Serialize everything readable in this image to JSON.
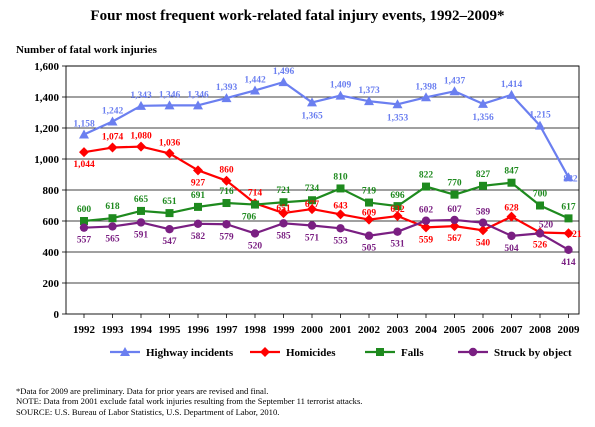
{
  "chart_data": {
    "type": "line",
    "title": "Four most frequent work-related fatal injury events, 1992–2009*",
    "ylabel": "Number of fatal work injuries",
    "xlabel": "",
    "ylim": [
      0,
      1600
    ],
    "yticks": [
      0,
      200,
      400,
      600,
      800,
      "1,000",
      "1,200",
      "1,400",
      "1,600"
    ],
    "ytick_values": [
      0,
      200,
      400,
      600,
      800,
      1000,
      1200,
      1400,
      1600
    ],
    "categories": [
      "1992",
      "1993",
      "1994",
      "1995",
      "1996",
      "1997",
      "1998",
      "1999",
      "2000",
      "2001",
      "2002",
      "2003",
      "2004",
      "2005",
      "2006",
      "2007",
      "2008",
      "2009"
    ],
    "grid": true,
    "legend_position": "bottom",
    "series": [
      {
        "name": "Highway incidents",
        "color": "#6b7ff0",
        "marker": "triangle",
        "values": [
          1158,
          1242,
          1343,
          1346,
          1346,
          1393,
          1442,
          1496,
          1365,
          1409,
          1373,
          1353,
          1398,
          1437,
          1356,
          1414,
          1215,
          882
        ],
        "labels": [
          "1,158",
          "1,242",
          "1,343",
          "1,346",
          "1,346",
          "1,393",
          "1,442",
          "1,496",
          "1,365",
          "1,409",
          "1,373",
          "1,353",
          "1,398",
          "1,437",
          "1,356",
          "1,414",
          "1,215",
          "882"
        ]
      },
      {
        "name": "Homicides",
        "color": "#ff0000",
        "marker": "diamond",
        "values": [
          1044,
          1074,
          1080,
          1036,
          927,
          860,
          714,
          651,
          677,
          643,
          609,
          632,
          559,
          567,
          540,
          628,
          526,
          521
        ],
        "labels": [
          "1,044",
          "1,074",
          "1,080",
          "1,036",
          "927",
          "860",
          "714",
          "651",
          "677",
          "643",
          "609",
          "632",
          "559",
          "567",
          "540",
          "628",
          "526",
          "521"
        ]
      },
      {
        "name": "Falls",
        "color": "#1e8a1e",
        "marker": "square",
        "values": [
          600,
          618,
          665,
          651,
          691,
          716,
          706,
          721,
          734,
          810,
          719,
          696,
          822,
          770,
          827,
          847,
          700,
          617
        ],
        "labels": [
          "600",
          "618",
          "665",
          "651",
          "691",
          "716",
          "706",
          "721",
          "734",
          "810",
          "719",
          "696",
          "822",
          "770",
          "827",
          "847",
          "700",
          "617"
        ]
      },
      {
        "name": "Struck by object",
        "color": "#7a1f82",
        "marker": "circle",
        "values": [
          557,
          565,
          591,
          547,
          582,
          579,
          520,
          585,
          571,
          553,
          505,
          531,
          602,
          607,
          589,
          504,
          520,
          414
        ],
        "labels": [
          "557",
          "565",
          "591",
          "547",
          "582",
          "579",
          "520",
          "585",
          "571",
          "553",
          "505",
          "531",
          "602",
          "607",
          "589",
          "504",
          "520",
          "414"
        ]
      }
    ]
  },
  "notes": [
    "*Data for 2009 are preliminary.  Data for prior years are revised and final.",
    "NOTE:  Data from 2001 exclude fatal work injuries resulting from the September 11 terrorist attacks.",
    "SOURCE:  U.S. Bureau of Labor Statistics, U.S. Department of Labor, 2010."
  ]
}
